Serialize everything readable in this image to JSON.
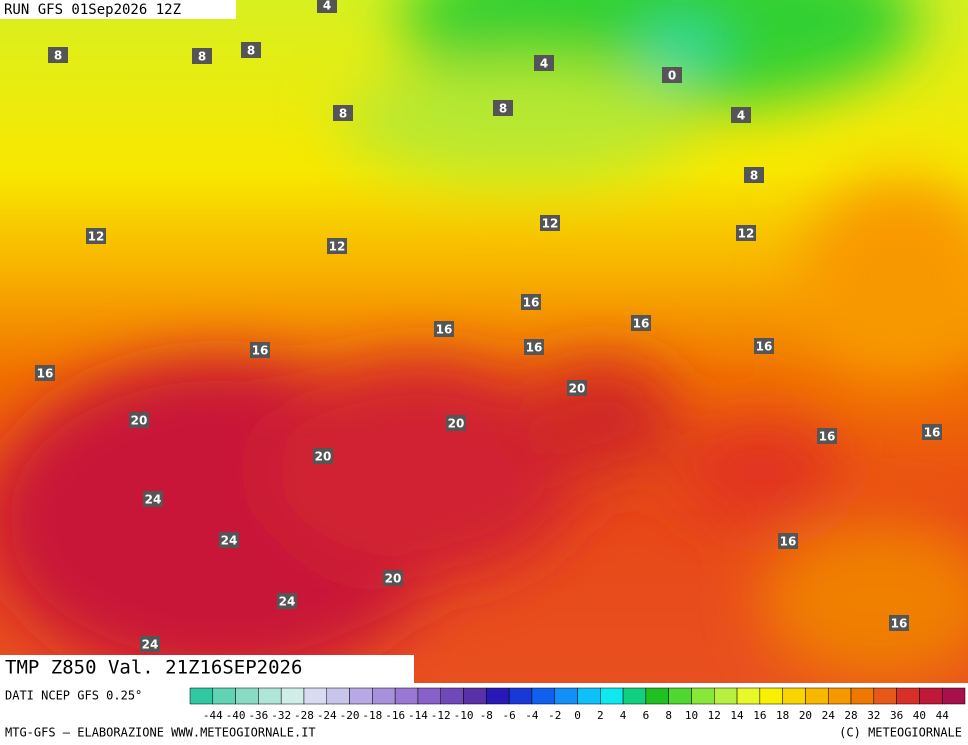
{
  "header": {
    "run": "RUN GFS 01Sep2026 12Z"
  },
  "map": {
    "contour_labels": [
      4,
      8,
      8,
      8,
      4,
      0,
      8,
      8,
      4,
      8,
      12,
      12,
      12,
      12,
      16,
      16,
      16,
      16,
      16,
      16,
      16,
      20,
      20,
      20,
      16,
      16,
      20,
      24,
      24,
      16,
      20,
      24,
      16,
      24
    ]
  },
  "footer": {
    "title": "TMP Z850 Val. 21Z16SEP2026",
    "source": "DATI NCEP GFS 0.25°",
    "credit": "MTG-GFS — ELABORAZIONE WWW.METEOGIORNALE.IT",
    "copyright": "(C) METEOGIORNALE"
  },
  "colorbar": {
    "labels": [
      -44,
      -40,
      -36,
      -32,
      -28,
      -24,
      -20,
      -18,
      -16,
      -14,
      -12,
      -10,
      -8,
      -6,
      -4,
      -2,
      0,
      2,
      4,
      6,
      8,
      10,
      12,
      14,
      16,
      18,
      20,
      24,
      28,
      32,
      36,
      40,
      44
    ],
    "colors": [
      "#30c8a0",
      "#60d4b4",
      "#88dcc4",
      "#b0e6d8",
      "#d0eee8",
      "#d8dcf0",
      "#c8c4ec",
      "#b8a8e4",
      "#a890dc",
      "#9878d4",
      "#8860c8",
      "#7048b8",
      "#5830a8",
      "#2818b8",
      "#1838d8",
      "#1060f0",
      "#1090f8",
      "#10c0f8",
      "#10e8f0",
      "#10d080",
      "#20c020",
      "#50d830",
      "#88e838",
      "#b8f040",
      "#e8f828",
      "#f8f000",
      "#f8d400",
      "#f8b800",
      "#f89800",
      "#f07800",
      "#e85818",
      "#d83028",
      "#c01838",
      "#a8104c"
    ]
  }
}
